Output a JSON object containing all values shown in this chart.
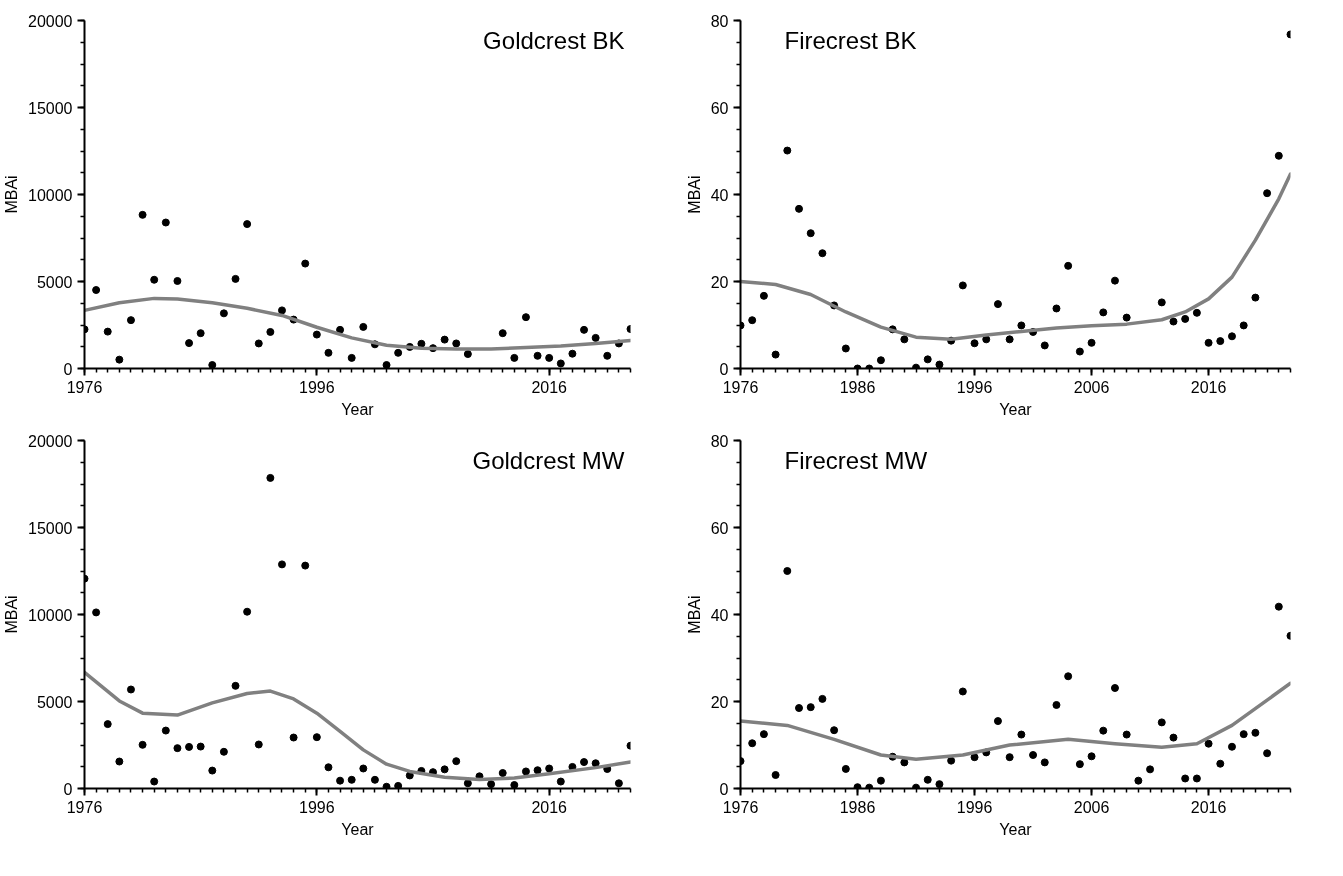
{
  "chart_data": [
    {
      "type": "scatter",
      "title": "Goldcrest BK",
      "xlabel": "Year",
      "ylabel": "MBAi",
      "grid": false,
      "xlim": [
        1976,
        2023
      ],
      "xticks": [
        1976,
        1996,
        2016
      ],
      "ylim": [
        0,
        20000
      ],
      "yticks": [
        0,
        5000,
        10000,
        15000,
        20000
      ],
      "x": [
        1976,
        1977,
        1978,
        1979,
        1980,
        1981,
        1982,
        1983,
        1984,
        1985,
        1986,
        1987,
        1988,
        1989,
        1990,
        1991,
        1992,
        1993,
        1994,
        1995,
        1996,
        1997,
        1998,
        1999,
        2000,
        2001,
        2002,
        2003,
        2004,
        2005,
        2006,
        2007,
        2008,
        2009,
        2010,
        2011,
        2012,
        2013,
        2014,
        2015,
        2016,
        2017,
        2018,
        2019,
        2020,
        2021,
        2022,
        2023
      ],
      "series": [
        {
          "marker": "circle",
          "color": "#000000",
          "values": [
            2250,
            4510,
            2120,
            510,
            2780,
            8830,
            5100,
            8390,
            5030,
            1460,
            2030,
            200,
            3170,
            5150,
            8300,
            1440,
            2100,
            3340,
            2810,
            6030,
            1950,
            900,
            2220,
            610,
            2390,
            1390,
            200,
            900,
            1240,
            1420,
            1170,
            1660,
            1440,
            830,
            null,
            null,
            2030,
            610,
            2950,
            730,
            610,
            290,
            850,
            2220,
            1760,
            730,
            1440,
            2270
          ]
        },
        {
          "type": "line",
          "color": "#808080",
          "x": [
            1976,
            1979,
            1982,
            1984,
            1987,
            1990,
            1993,
            1996,
            1999,
            2002,
            2005,
            2008,
            2011,
            2014,
            2017,
            2020,
            2023
          ],
          "values": [
            3340,
            3780,
            4030,
            4000,
            3780,
            3460,
            3050,
            2370,
            1760,
            1340,
            1170,
            1120,
            1120,
            1200,
            1290,
            1440,
            1610
          ]
        }
      ]
    },
    {
      "type": "scatter",
      "title": "Firecrest BK",
      "xlabel": "Year",
      "ylabel": "MBAi",
      "grid": false,
      "xlim": [
        1976,
        2023
      ],
      "xticks": [
        1976,
        1986,
        1996,
        2006,
        2016
      ],
      "ylim": [
        0,
        80
      ],
      "yticks": [
        0,
        20,
        40,
        60,
        80
      ],
      "x": [
        1976,
        1977,
        1978,
        1979,
        1980,
        1981,
        1982,
        1983,
        1984,
        1985,
        1986,
        1987,
        1988,
        1989,
        1990,
        1991,
        1992,
        1993,
        1994,
        1995,
        1996,
        1997,
        1998,
        1999,
        2000,
        2001,
        2002,
        2003,
        2004,
        2005,
        2006,
        2007,
        2008,
        2009,
        2010,
        2011,
        2012,
        2013,
        2014,
        2015,
        2016,
        2017,
        2018,
        2019,
        2020,
        2021,
        2022,
        2023
      ],
      "series": [
        {
          "marker": "circle",
          "color": "#000000",
          "values": [
            9.9,
            11.1,
            16.7,
            3.2,
            50.1,
            36.7,
            31.1,
            26.5,
            14.5,
            4.6,
            0,
            0,
            1.9,
            9.0,
            6.7,
            0.2,
            2.1,
            0.9,
            6.4,
            19.1,
            5.8,
            6.7,
            14.8,
            6.7,
            9.9,
            8.4,
            5.3,
            13.8,
            23.6,
            3.9,
            5.9,
            12.9,
            20.2,
            11.7,
            null,
            null,
            15.2,
            10.8,
            11.4,
            12.8,
            5.9,
            6.3,
            7.4,
            9.9,
            16.3,
            40.3,
            48.9,
            76.8
          ]
        },
        {
          "type": "line",
          "color": "#808080",
          "x": [
            1976,
            1979,
            1982,
            1985,
            1988,
            1991,
            1994,
            1997,
            2000,
            2003,
            2006,
            2009,
            2012,
            2014,
            2016,
            2018,
            2020,
            2022,
            2023
          ],
          "values": [
            20,
            19.3,
            17,
            13,
            9.5,
            7.2,
            6.7,
            7.7,
            8.5,
            9.3,
            9.8,
            10.2,
            11.2,
            13,
            16,
            21,
            29.5,
            39,
            44.7
          ]
        }
      ]
    },
    {
      "type": "scatter",
      "title": "Goldcrest MW",
      "xlabel": "Year",
      "ylabel": "MBAi",
      "grid": false,
      "xlim": [
        1976,
        2023
      ],
      "xticks": [
        1976,
        1996,
        2016
      ],
      "ylim": [
        0,
        20000
      ],
      "yticks": [
        0,
        5000,
        10000,
        15000,
        20000
      ],
      "x": [
        1976,
        1977,
        1978,
        1979,
        1980,
        1981,
        1982,
        1983,
        1984,
        1985,
        1986,
        1987,
        1988,
        1989,
        1990,
        1991,
        1992,
        1993,
        1994,
        1995,
        1996,
        1997,
        1998,
        1999,
        2000,
        2001,
        2002,
        2003,
        2004,
        2005,
        2006,
        2007,
        2008,
        2009,
        2010,
        2011,
        2012,
        2013,
        2014,
        2015,
        2016,
        2017,
        2018,
        2019,
        2020,
        2021,
        2022,
        2023
      ],
      "series": [
        {
          "marker": "circle",
          "color": "#000000",
          "values": [
            12060,
            10120,
            3700,
            1550,
            5690,
            2510,
            400,
            3330,
            2320,
            2390,
            2410,
            1030,
            2110,
            5900,
            10160,
            2530,
            17850,
            12880,
            2930,
            12810,
            2950,
            1220,
            450,
            500,
            1150,
            500,
            100,
            150,
            750,
            1010,
            940,
            1100,
            1570,
            300,
            700,
            250,
            890,
            200,
            980,
            1050,
            1150,
            400,
            1240,
            1520,
            1450,
            1120,
            300,
            2460
          ]
        },
        {
          "type": "line",
          "color": "#808080",
          "x": [
            1976,
            1979,
            1981,
            1984,
            1987,
            1990,
            1992,
            1994,
            1996,
            1998,
            2000,
            2002,
            2004,
            2007,
            2010,
            2013,
            2016,
            2020,
            2023
          ],
          "values": [
            6670,
            5030,
            4330,
            4220,
            4920,
            5460,
            5600,
            5150,
            4330,
            3280,
            2220,
            1400,
            980,
            650,
            520,
            600,
            850,
            1200,
            1520
          ]
        }
      ]
    },
    {
      "type": "scatter",
      "title": "Firecrest MW",
      "xlabel": "Year",
      "ylabel": "MBAi",
      "grid": false,
      "xlim": [
        1976,
        2023
      ],
      "xticks": [
        1976,
        1986,
        1996,
        2006,
        2016
      ],
      "ylim": [
        0,
        80
      ],
      "yticks": [
        0,
        20,
        40,
        60,
        80
      ],
      "x": [
        1976,
        1977,
        1978,
        1979,
        1980,
        1981,
        1982,
        1983,
        1984,
        1985,
        1986,
        1987,
        1988,
        1989,
        1990,
        1991,
        1992,
        1993,
        1994,
        1995,
        1996,
        1997,
        1998,
        1999,
        2000,
        2001,
        2002,
        2003,
        2004,
        2005,
        2006,
        2007,
        2008,
        2009,
        2010,
        2011,
        2012,
        2013,
        2014,
        2015,
        2016,
        2017,
        2018,
        2019,
        2020,
        2021,
        2022,
        2023
      ],
      "series": [
        {
          "marker": "circle",
          "color": "#000000",
          "values": [
            6.3,
            10.4,
            12.5,
            3.1,
            50,
            18.5,
            18.7,
            20.6,
            13.4,
            4.5,
            0.3,
            0.2,
            1.8,
            7.3,
            6.0,
            0.2,
            2,
            1,
            6.4,
            22.3,
            7.2,
            8.3,
            15.5,
            7.2,
            12.4,
            7.7,
            6.0,
            19.2,
            25.8,
            5.6,
            7.4,
            13.3,
            23.1,
            12.4,
            1.8,
            4.4,
            15.2,
            11.7,
            2.3,
            2.3,
            10.3,
            5.7,
            9.6,
            12.5,
            12.8,
            8.1,
            41.8,
            35.1
          ]
        },
        {
          "type": "line",
          "color": "#808080",
          "x": [
            1976,
            1980,
            1984,
            1988,
            1991,
            1995,
            1999,
            2004,
            2008,
            2012,
            2015,
            2018,
            2023
          ],
          "values": [
            15.5,
            14.5,
            11.3,
            7.7,
            6.7,
            7.7,
            10,
            11.3,
            10.3,
            9.5,
            10.3,
            14.5,
            24.2
          ]
        }
      ]
    }
  ]
}
